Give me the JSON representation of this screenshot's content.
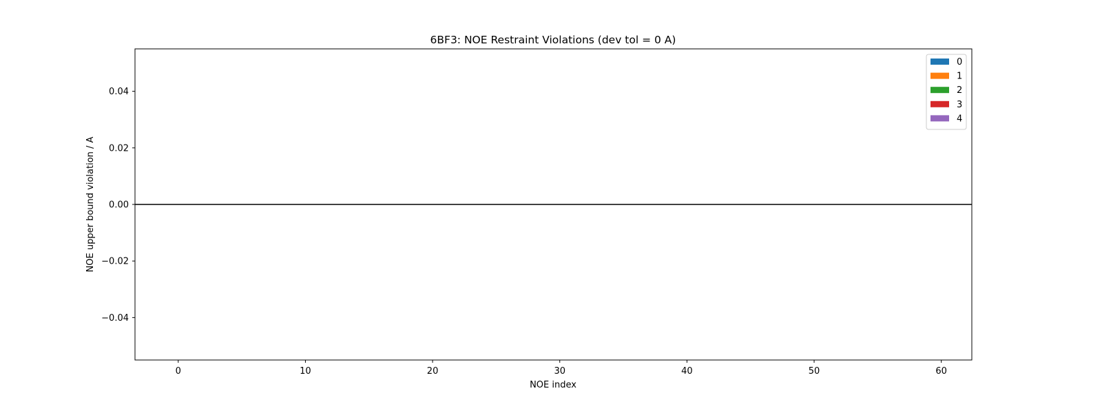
{
  "chart_data": {
    "type": "bar",
    "title": "6BF3: NOE Restraint Violations (dev tol = 0 A)",
    "xlabel": "NOE index",
    "ylabel": "NOE upper bound violation / A",
    "xlim": [
      -3.4,
      62.4
    ],
    "ylim": [
      -0.055,
      0.055
    ],
    "x_ticks": [
      0,
      10,
      20,
      30,
      40,
      50,
      60
    ],
    "y_ticks": [
      -0.04,
      -0.02,
      0.0,
      0.02,
      0.04
    ],
    "y_tick_labels": [
      "−0.04",
      "−0.02",
      "0.00",
      "0.02",
      "0.04"
    ],
    "zero_line": true,
    "grid": false,
    "legend_position": "top-right",
    "series": [
      {
        "name": "0",
        "color": "#1f77b4",
        "values": []
      },
      {
        "name": "1",
        "color": "#ff7f0e",
        "values": []
      },
      {
        "name": "2",
        "color": "#2ca02c",
        "values": []
      },
      {
        "name": "3",
        "color": "#d62728",
        "values": []
      },
      {
        "name": "4",
        "color": "#9467bd",
        "values": []
      }
    ]
  }
}
